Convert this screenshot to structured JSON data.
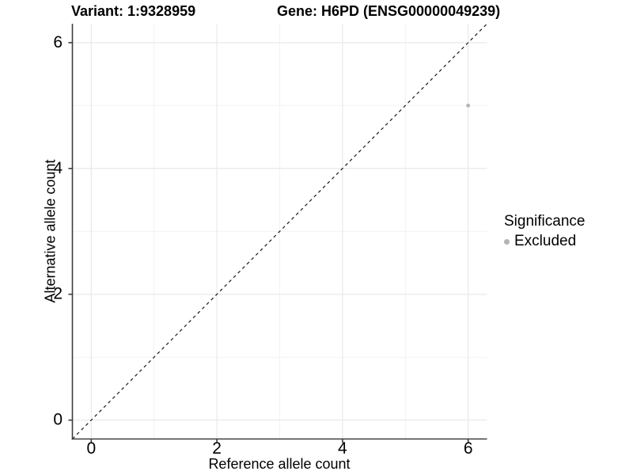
{
  "header": {
    "variant_title": "Variant: 1:9328959",
    "gene_title": "Gene: H6PD (ENSG00000049239)"
  },
  "legend": {
    "title": "Significance",
    "items": [
      {
        "label": "Excluded",
        "color": "#b3b3b3"
      }
    ]
  },
  "chart_data": {
    "type": "scatter",
    "xlabel": "Reference allele count",
    "ylabel": "Alternative allele count",
    "xlim": [
      -0.3,
      6.3
    ],
    "ylim": [
      -0.3,
      6.3
    ],
    "x_major_ticks": [
      0,
      2,
      4,
      6
    ],
    "y_major_ticks": [
      0,
      2,
      4,
      6
    ],
    "x_minor_gridlines": [
      1,
      3,
      5
    ],
    "y_minor_gridlines": [
      1,
      3,
      5
    ],
    "grid": true,
    "legend_position": "right",
    "series": [
      {
        "name": "Excluded",
        "color": "#b3b3b3",
        "points": [
          {
            "x": 6,
            "y": 5
          }
        ]
      }
    ],
    "reference_line": {
      "type": "identity",
      "style": "dashed",
      "from": [
        -0.3,
        -0.3
      ],
      "to": [
        6.3,
        6.3
      ],
      "color": "#1a1a1a"
    },
    "style": {
      "grid_major_color": "#e9e9e9",
      "grid_minor_color": "#f2f2f2",
      "axis_color": "#3d3d3d",
      "tick_color": "#3d3d3d",
      "text_color": "#000000",
      "background": "#ffffff"
    }
  }
}
